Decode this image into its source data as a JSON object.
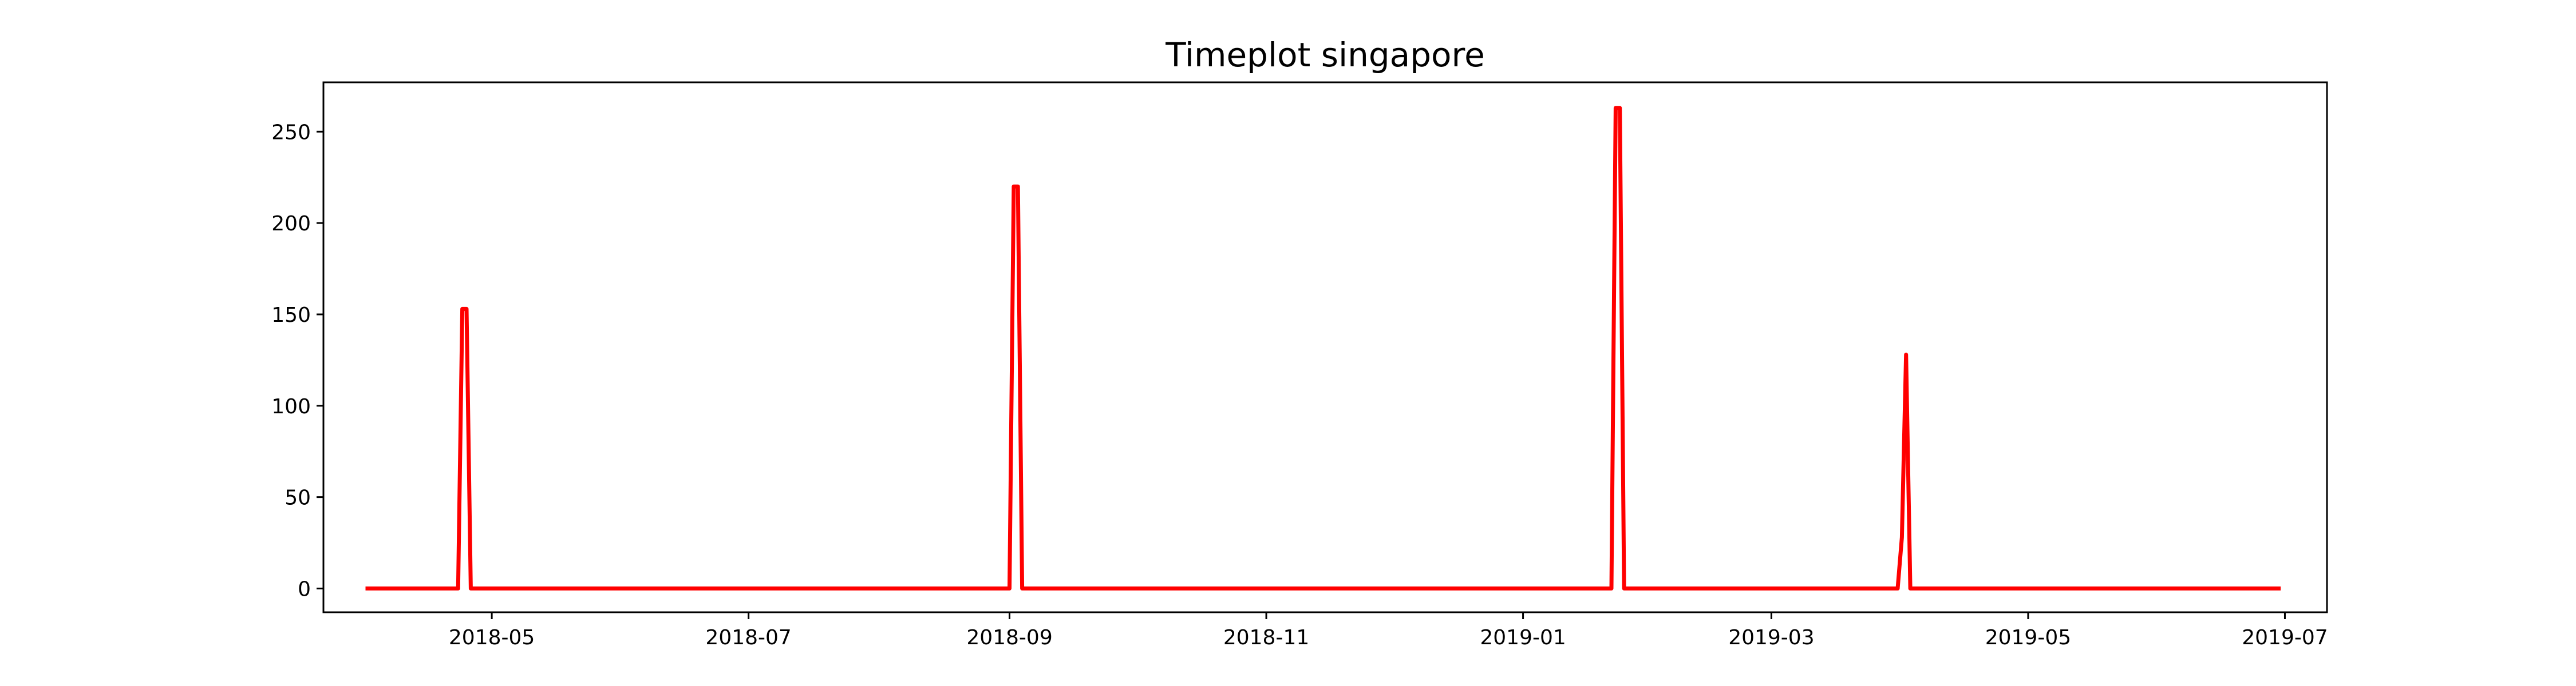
{
  "chart_data": {
    "type": "line",
    "title": "Timeplot singapore",
    "xlabel": "",
    "ylabel": "",
    "x_ticks": [
      "2018-05",
      "2018-07",
      "2018-09",
      "2018-11",
      "2019-01",
      "2019-03",
      "2019-05",
      "2019-07"
    ],
    "y_ticks": [
      "0",
      "50",
      "100",
      "150",
      "200",
      "250"
    ],
    "xlim": [
      "2018-03-22",
      "2019-07-11"
    ],
    "ylim": [
      -13,
      277
    ],
    "grid": false,
    "legend": "none",
    "series": [
      {
        "color": "#ff0000",
        "x": [
          "2018-04-01",
          "2018-04-23",
          "2018-04-24",
          "2018-04-25",
          "2018-04-26",
          "2018-09-01",
          "2018-09-02",
          "2018-09-03",
          "2018-09-04",
          "2019-01-22",
          "2019-01-23",
          "2019-01-24",
          "2019-01-25",
          "2019-03-31",
          "2019-04-01",
          "2019-04-02",
          "2019-04-03",
          "2019-06-30"
        ],
        "y": [
          0,
          0,
          153,
          153,
          0,
          0,
          220,
          220,
          0,
          0,
          263,
          263,
          0,
          0,
          28,
          128,
          0,
          0
        ]
      }
    ]
  }
}
